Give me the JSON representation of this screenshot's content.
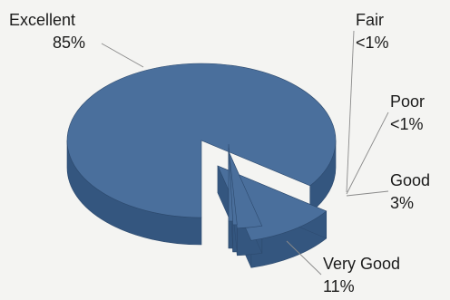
{
  "colors": {
    "top": "#4a6f9c",
    "side": "#34567f",
    "edge": "#2d4a6e",
    "leader": "#8a8a8a",
    "label": "#1a1a1a",
    "background": "#f4f4f2"
  },
  "chart_data": {
    "type": "pie",
    "three_d": true,
    "categories": [
      "Excellent",
      "Very Good",
      "Good",
      "Poor",
      "Fair"
    ],
    "values": [
      85,
      11,
      3,
      0.5,
      0.5
    ],
    "value_labels": [
      "85%",
      "11%",
      "3%",
      "<1%",
      "<1%"
    ],
    "exploded": [
      "Very Good",
      "Good",
      "Poor",
      "Fair"
    ],
    "legend": "none"
  }
}
